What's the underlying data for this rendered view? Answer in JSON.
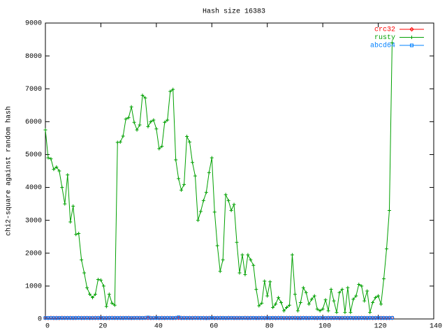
{
  "chart_data": {
    "type": "line",
    "title": "Hash size 16383",
    "ylabel": "chi2-square against random hash",
    "xlim": [
      0,
      140
    ],
    "ylim": [
      0,
      9000
    ],
    "xticks": [
      0,
      20,
      40,
      60,
      80,
      100,
      120,
      140
    ],
    "yticks": [
      0,
      1000,
      2000,
      3000,
      4000,
      5000,
      6000,
      7000,
      8000,
      9000
    ],
    "legend": "upper right",
    "x": [
      0,
      1,
      2,
      3,
      4,
      5,
      6,
      7,
      8,
      9,
      10,
      11,
      12,
      13,
      14,
      15,
      16,
      17,
      18,
      19,
      20,
      21,
      22,
      23,
      24,
      25,
      26,
      27,
      28,
      29,
      30,
      31,
      32,
      33,
      34,
      35,
      36,
      37,
      38,
      39,
      40,
      41,
      42,
      43,
      44,
      45,
      46,
      47,
      48,
      49,
      50,
      51,
      52,
      53,
      54,
      55,
      56,
      57,
      58,
      59,
      60,
      61,
      62,
      63,
      64,
      65,
      66,
      67,
      68,
      69,
      70,
      71,
      72,
      73,
      74,
      75,
      76,
      77,
      78,
      79,
      80,
      81,
      82,
      83,
      84,
      85,
      86,
      87,
      88,
      89,
      90,
      91,
      92,
      93,
      94,
      95,
      96,
      97,
      98,
      99,
      100,
      101,
      102,
      103,
      104,
      105,
      106,
      107,
      108,
      109,
      110,
      111,
      112,
      113,
      114,
      115,
      116,
      117,
      118,
      119,
      120,
      121,
      122,
      123,
      124,
      125
    ],
    "series": [
      {
        "name": "crc32",
        "color": "#ff0000",
        "marker": "diamond",
        "values": [
          30,
          28,
          33,
          29,
          31,
          27,
          32,
          30,
          29,
          31,
          28,
          30,
          33,
          29,
          30,
          31,
          27,
          30,
          32,
          29,
          31,
          28,
          30,
          29,
          33,
          30,
          28,
          31,
          29,
          30,
          32,
          27,
          30,
          31,
          29,
          28,
          33,
          30,
          29,
          31,
          30,
          28,
          32,
          29,
          31,
          30,
          27,
          30,
          33,
          29,
          31,
          28,
          30,
          29,
          32,
          30,
          28,
          31,
          29,
          30,
          33,
          27,
          30,
          31,
          29,
          28,
          32,
          30,
          29,
          31,
          30,
          28,
          33,
          29,
          31,
          30,
          27,
          30,
          32,
          29,
          31,
          28,
          30,
          29,
          33,
          30,
          28,
          31,
          29,
          30,
          32,
          27,
          30,
          31,
          29,
          28,
          33,
          30,
          29,
          31,
          30,
          28,
          32,
          29,
          31,
          30,
          27,
          30,
          33,
          29,
          31,
          28,
          30,
          29,
          32,
          30,
          28,
          31,
          29,
          30,
          31,
          29,
          30,
          28,
          30,
          31
        ]
      },
      {
        "name": "rusty",
        "color": "#00a000",
        "marker": "plus",
        "values": [
          5750,
          4900,
          4870,
          4550,
          4620,
          4500,
          4000,
          3500,
          4380,
          2950,
          3430,
          2570,
          2600,
          1800,
          1400,
          950,
          750,
          650,
          750,
          1200,
          1180,
          1000,
          380,
          750,
          480,
          420,
          5370,
          5380,
          5560,
          6080,
          6120,
          6450,
          5980,
          5750,
          5900,
          6800,
          6720,
          5850,
          6000,
          6050,
          5780,
          5180,
          5250,
          5980,
          6050,
          6920,
          6980,
          4840,
          4270,
          3920,
          4090,
          5550,
          5380,
          4760,
          4350,
          3000,
          3270,
          3600,
          3850,
          4450,
          4900,
          3250,
          2230,
          1450,
          1800,
          3780,
          3600,
          3300,
          3480,
          2330,
          1400,
          1950,
          1350,
          1950,
          1800,
          1630,
          900,
          400,
          480,
          1150,
          700,
          1130,
          350,
          450,
          650,
          500,
          250,
          350,
          420,
          1950,
          750,
          250,
          500,
          950,
          800,
          450,
          600,
          700,
          300,
          250,
          300,
          580,
          250,
          900,
          550,
          200,
          800,
          900,
          200,
          950,
          200,
          600,
          700,
          1050,
          1000,
          550,
          850,
          200,
          500,
          650,
          700,
          450,
          1220,
          2130,
          3300,
          8400
        ]
      },
      {
        "name": "abcd64",
        "color": "#0080ff",
        "marker": "square",
        "values": [
          28,
          31,
          29,
          30,
          27,
          32,
          30,
          28,
          31,
          29,
          30,
          29,
          31,
          28,
          30,
          32,
          29,
          30,
          28,
          31,
          29,
          30,
          27,
          31,
          30,
          29,
          32,
          28,
          30,
          31,
          29,
          28,
          30,
          31,
          29,
          33,
          30,
          45,
          30,
          29,
          31,
          28,
          30,
          29,
          32,
          30,
          28,
          31,
          50,
          30,
          29,
          31,
          30,
          28,
          32,
          29,
          31,
          30,
          27,
          30,
          31,
          29,
          30,
          28,
          31,
          29,
          30,
          32,
          28,
          30,
          29,
          31,
          28,
          30,
          29,
          32,
          30,
          28,
          31,
          29,
          30,
          29,
          31,
          28,
          30,
          32,
          29,
          30,
          28,
          31,
          29,
          30,
          27,
          31,
          30,
          29,
          32,
          28,
          30,
          31,
          29,
          28,
          30,
          31,
          29,
          33,
          30,
          28,
          30,
          29,
          31,
          28,
          30,
          29,
          32,
          30,
          28,
          31,
          29,
          30,
          31,
          29,
          30,
          28,
          30,
          31
        ]
      }
    ]
  }
}
